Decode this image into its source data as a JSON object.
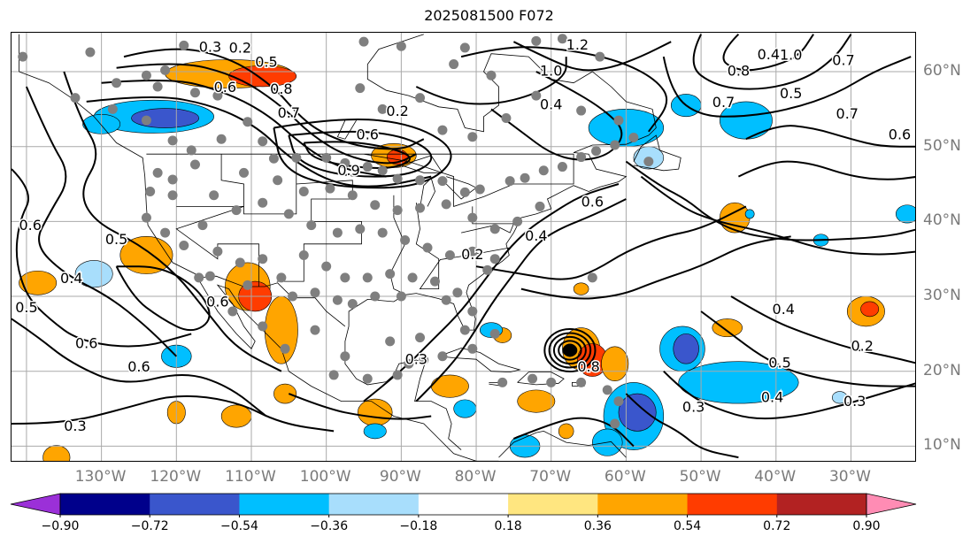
{
  "title": "2025081500 F072",
  "lat_labels": [
    {
      "lat": 60,
      "text": "60°N"
    },
    {
      "lat": 50,
      "text": "50°N"
    },
    {
      "lat": 40,
      "text": "40°N"
    },
    {
      "lat": 30,
      "text": "30°N"
    },
    {
      "lat": 20,
      "text": "20°N"
    },
    {
      "lat": 10,
      "text": "10°N"
    }
  ],
  "lon_labels": [
    {
      "lon": -130,
      "text": "130°W"
    },
    {
      "lon": -120,
      "text": "120°W"
    },
    {
      "lon": -110,
      "text": "110°W"
    },
    {
      "lon": -100,
      "text": "100°W"
    },
    {
      "lon": -90,
      "text": "90°W"
    },
    {
      "lon": -80,
      "text": "80°W"
    },
    {
      "lon": -70,
      "text": "70°W"
    },
    {
      "lon": -60,
      "text": "60°W"
    },
    {
      "lon": -50,
      "text": "50°W"
    },
    {
      "lon": -40,
      "text": "40°W"
    },
    {
      "lon": -30,
      "text": "30°W"
    }
  ],
  "domain": {
    "lon_min": -142.0,
    "lon_max": -21.2,
    "lat_min": 7.8,
    "lat_max": 65.2
  },
  "grid_color": "#a9a9a9",
  "colorbar": {
    "levels": [
      "-0.90",
      "-0.72",
      "-0.54",
      "-0.36",
      "-0.18",
      "0.18",
      "0.36",
      "0.54",
      "0.72",
      "0.90"
    ],
    "colors": [
      "#9b30d8",
      "#00008b",
      "#3a56cc",
      "#00bfff",
      "#a8defc",
      "#ffffff",
      "#ffe680",
      "#ffa500",
      "#ff3c00",
      "#b22222",
      "#ff8cb4"
    ]
  },
  "contour_labels": [
    {
      "text": "0.3",
      "lon": -115.5,
      "lat": 63.2
    },
    {
      "text": "0.2",
      "lon": -111.5,
      "lat": 63.1
    },
    {
      "text": "0.5",
      "lon": -108.0,
      "lat": 61.2
    },
    {
      "text": "0.6",
      "lon": -113.5,
      "lat": 57.8
    },
    {
      "text": "0.8",
      "lon": -106.0,
      "lat": 57.6
    },
    {
      "text": "0.7",
      "lon": -105.0,
      "lat": 54.4
    },
    {
      "text": "0.2",
      "lon": -90.5,
      "lat": 54.6
    },
    {
      "text": "0.6",
      "lon": -94.5,
      "lat": 51.5
    },
    {
      "text": "0.9",
      "lon": -97.0,
      "lat": 46.7
    },
    {
      "text": "0.4",
      "lon": -70.0,
      "lat": 55.5
    },
    {
      "text": "1.2",
      "lon": -66.5,
      "lat": 63.5
    },
    {
      "text": "1.0",
      "lon": -70.0,
      "lat": 60.0
    },
    {
      "text": "0.4",
      "lon": -41.0,
      "lat": 62.2
    },
    {
      "text": "0.8",
      "lon": -45.0,
      "lat": 60.0
    },
    {
      "text": "1.0",
      "lon": -38.0,
      "lat": 62.1
    },
    {
      "text": "0.7",
      "lon": -31.0,
      "lat": 61.4
    },
    {
      "text": "0.5",
      "lon": -38.0,
      "lat": 57.0
    },
    {
      "text": "0.7",
      "lon": -47.0,
      "lat": 55.8
    },
    {
      "text": "0.7",
      "lon": -30.5,
      "lat": 54.3
    },
    {
      "text": "0.6",
      "lon": -23.5,
      "lat": 51.5
    },
    {
      "text": "0.6",
      "lon": -64.5,
      "lat": 42.5
    },
    {
      "text": "0.4",
      "lon": -72.0,
      "lat": 38.0
    },
    {
      "text": "0.2",
      "lon": -80.5,
      "lat": 35.5
    },
    {
      "text": "0.5",
      "lon": -128.0,
      "lat": 37.5
    },
    {
      "text": "0.6",
      "lon": -139.5,
      "lat": 39.4
    },
    {
      "text": "0.4",
      "lon": -134.0,
      "lat": 32.3
    },
    {
      "text": "0.5",
      "lon": -140.0,
      "lat": 28.4
    },
    {
      "text": "0.6",
      "lon": -132.0,
      "lat": 23.6
    },
    {
      "text": "0.6",
      "lon": -125.0,
      "lat": 20.5
    },
    {
      "text": "0.3",
      "lon": -133.5,
      "lat": 12.6
    },
    {
      "text": "0.6",
      "lon": -114.5,
      "lat": 29.2
    },
    {
      "text": "0.3",
      "lon": -88.0,
      "lat": 21.5
    },
    {
      "text": "0.3",
      "lon": -51.0,
      "lat": 15.1
    },
    {
      "text": "0.4",
      "lon": -40.5,
      "lat": 16.4
    },
    {
      "text": "0.3",
      "lon": -29.5,
      "lat": 15.9
    },
    {
      "text": "0.5",
      "lon": -39.5,
      "lat": 21.0
    },
    {
      "text": "0.2",
      "lon": -28.5,
      "lat": 23.3
    },
    {
      "text": "0.4",
      "lon": -39.0,
      "lat": 28.2
    },
    {
      "text": "0.8",
      "lon": -65.0,
      "lat": 20.5
    }
  ],
  "stations": [
    [
      -140.5,
      62.0
    ],
    [
      -131.5,
      62.6
    ],
    [
      -124.0,
      59.5
    ],
    [
      -119.0,
      63.5
    ],
    [
      -121.5,
      60.2
    ],
    [
      -128.0,
      58.5
    ],
    [
      -122.5,
      58.0
    ],
    [
      -117.5,
      57.2
    ],
    [
      -114.5,
      56.8
    ],
    [
      -110.5,
      53.3
    ],
    [
      -108.5,
      50.7
    ],
    [
      -107.0,
      48.4
    ],
    [
      -104.0,
      48.5
    ],
    [
      -100.0,
      48.5
    ],
    [
      -97.5,
      47.8
    ],
    [
      -94.5,
      47.3
    ],
    [
      -92.5,
      46.8
    ],
    [
      -90.5,
      45.7
    ],
    [
      -87.5,
      45.5
    ],
    [
      -84.5,
      45.4
    ],
    [
      -81.5,
      43.9
    ],
    [
      -79.5,
      44.3
    ],
    [
      -75.5,
      45.4
    ],
    [
      -73.5,
      45.8
    ],
    [
      -71.0,
      46.8
    ],
    [
      -68.5,
      47.3
    ],
    [
      -66.0,
      48.6
    ],
    [
      -64.0,
      49.4
    ],
    [
      -61.5,
      50.2
    ],
    [
      -59.0,
      51.2
    ],
    [
      -57.0,
      48.0
    ],
    [
      -61.0,
      53.5
    ],
    [
      -66.0,
      54.8
    ],
    [
      -72.0,
      56.8
    ],
    [
      -78.0,
      59.5
    ],
    [
      -83.0,
      61.0
    ],
    [
      -95.0,
      64.0
    ],
    [
      -90.0,
      63.4
    ],
    [
      -81.5,
      63.2
    ],
    [
      -72.0,
      64.1
    ],
    [
      -68.5,
      64.4
    ],
    [
      -63.5,
      62.0
    ],
    [
      -95.5,
      57.8
    ],
    [
      -92.5,
      55.0
    ],
    [
      -87.5,
      56.5
    ],
    [
      -84.5,
      52.2
    ],
    [
      -80.5,
      51.3
    ],
    [
      -76.0,
      53.8
    ],
    [
      -133.5,
      56.5
    ],
    [
      -128.5,
      55.0
    ],
    [
      -124.0,
      53.5
    ],
    [
      -120.5,
      50.8
    ],
    [
      -118.0,
      49.5
    ],
    [
      -114.0,
      51.0
    ],
    [
      -111.0,
      46.5
    ],
    [
      -106.5,
      45.5
    ],
    [
      -103.0,
      44.0
    ],
    [
      -99.5,
      44.4
    ],
    [
      -96.5,
      43.5
    ],
    [
      -93.5,
      42.2
    ],
    [
      -90.5,
      41.5
    ],
    [
      -87.5,
      41.8
    ],
    [
      -84.0,
      42.3
    ],
    [
      -80.5,
      40.5
    ],
    [
      -77.5,
      39.0
    ],
    [
      -74.5,
      40.0
    ],
    [
      -71.5,
      42.0
    ],
    [
      -122.5,
      46.5
    ],
    [
      -123.5,
      44.0
    ],
    [
      -120.5,
      45.6
    ],
    [
      -117.5,
      47.6
    ],
    [
      -115.0,
      43.5
    ],
    [
      -112.0,
      41.5
    ],
    [
      -108.5,
      42.5
    ],
    [
      -105.0,
      41.0
    ],
    [
      -102.0,
      39.5
    ],
    [
      -98.5,
      38.5
    ],
    [
      -95.5,
      39.0
    ],
    [
      -92.5,
      38.5
    ],
    [
      -89.5,
      37.5
    ],
    [
      -86.5,
      36.5
    ],
    [
      -83.5,
      35.5
    ],
    [
      -80.5,
      36.0
    ],
    [
      -77.5,
      35.0
    ],
    [
      -121.5,
      38.5
    ],
    [
      -119.0,
      36.8
    ],
    [
      -116.5,
      39.5
    ],
    [
      -114.5,
      36.0
    ],
    [
      -111.5,
      34.5
    ],
    [
      -108.5,
      35.0
    ],
    [
      -106.0,
      32.5
    ],
    [
      -103.0,
      35.5
    ],
    [
      -100.0,
      34.0
    ],
    [
      -97.5,
      32.5
    ],
    [
      -94.5,
      32.5
    ],
    [
      -91.5,
      33.0
    ],
    [
      -88.5,
      32.5
    ],
    [
      -85.5,
      32.0
    ],
    [
      -82.5,
      30.5
    ],
    [
      -80.5,
      28.0
    ],
    [
      -81.5,
      25.5
    ],
    [
      -90.0,
      30.0
    ],
    [
      -93.5,
      30.0
    ],
    [
      -96.5,
      29.0
    ],
    [
      -98.5,
      29.5
    ],
    [
      -101.5,
      30.5
    ],
    [
      -104.5,
      30.0
    ],
    [
      -110.5,
      31.5
    ],
    [
      -115.5,
      32.7
    ],
    [
      -117.0,
      32.5
    ],
    [
      -124.0,
      40.5
    ],
    [
      -120.5,
      43.5
    ],
    [
      -112.5,
      28.0
    ],
    [
      -108.5,
      26.0
    ],
    [
      -105.5,
      23.0
    ],
    [
      -101.5,
      25.5
    ],
    [
      -99.0,
      19.5
    ],
    [
      -97.5,
      22.0
    ],
    [
      -94.5,
      19.0
    ],
    [
      -90.5,
      19.5
    ],
    [
      -89.0,
      21.0
    ],
    [
      -87.0,
      21.5
    ],
    [
      -84.5,
      22.0
    ],
    [
      -80.5,
      23.0
    ],
    [
      -77.5,
      25.0
    ],
    [
      -76.5,
      18.5
    ],
    [
      -72.5,
      19.0
    ],
    [
      -70.0,
      18.5
    ],
    [
      -66.0,
      18.5
    ],
    [
      -61.0,
      16.0
    ],
    [
      -61.5,
      13.0
    ],
    [
      -62.5,
      17.5
    ],
    [
      -64.5,
      32.5
    ],
    [
      -78.5,
      33.5
    ],
    [
      -84.0,
      29.5
    ],
    [
      -87.5,
      24.5
    ],
    [
      -91.5,
      24.0
    ]
  ],
  "positive_blobs": [
    {
      "lon": -113.0,
      "lat": 59.7,
      "rx": 8.5,
      "ry": 1.9,
      "level": 7
    },
    {
      "lon": -108.5,
      "lat": 59.4,
      "rx": 4.5,
      "ry": 1.4,
      "level": 8
    },
    {
      "lon": -110.5,
      "lat": 31.3,
      "rx": 3.0,
      "ry": 3.2,
      "level": 7
    },
    {
      "lon": -109.5,
      "lat": 30.0,
      "rx": 2.2,
      "ry": 2.0,
      "level": 8
    },
    {
      "lon": -106.0,
      "lat": 25.5,
      "rx": 2.2,
      "ry": 4.5,
      "level": 7
    },
    {
      "lon": -124.0,
      "lat": 35.5,
      "rx": 3.5,
      "ry": 2.5,
      "level": 7
    },
    {
      "lon": -138.5,
      "lat": 31.8,
      "rx": 2.5,
      "ry": 1.6,
      "level": 7
    },
    {
      "lon": -91.0,
      "lat": 48.8,
      "rx": 3.0,
      "ry": 1.6,
      "level": 7
    },
    {
      "lon": -90.5,
      "lat": 48.6,
      "rx": 1.4,
      "ry": 1.0,
      "level": 8
    },
    {
      "lon": -76.5,
      "lat": 24.8,
      "rx": 1.2,
      "ry": 1.0,
      "level": 7
    },
    {
      "lon": -66.0,
      "lat": 23.0,
      "rx": 2.5,
      "ry": 2.8,
      "level": 7
    },
    {
      "lon": -64.5,
      "lat": 21.5,
      "rx": 2.0,
      "ry": 2.2,
      "level": 8
    },
    {
      "lon": -61.5,
      "lat": 21.0,
      "rx": 1.8,
      "ry": 2.3,
      "level": 7
    },
    {
      "lon": -72.0,
      "lat": 16.0,
      "rx": 2.5,
      "ry": 1.5,
      "level": 7
    },
    {
      "lon": -83.5,
      "lat": 18.0,
      "rx": 2.5,
      "ry": 1.5,
      "level": 7
    },
    {
      "lon": -93.5,
      "lat": 14.5,
      "rx": 2.3,
      "ry": 1.8,
      "level": 7
    },
    {
      "lon": -105.5,
      "lat": 17.0,
      "rx": 1.5,
      "ry": 1.3,
      "level": 7
    },
    {
      "lon": -112.0,
      "lat": 14.0,
      "rx": 2.0,
      "ry": 1.5,
      "level": 7
    },
    {
      "lon": -120.0,
      "lat": 14.5,
      "rx": 1.2,
      "ry": 1.5,
      "level": 7
    },
    {
      "lon": -136.0,
      "lat": 8.5,
      "rx": 1.8,
      "ry": 1.6,
      "level": 7
    },
    {
      "lon": -45.5,
      "lat": 40.5,
      "rx": 2.0,
      "ry": 2.0,
      "level": 7
    },
    {
      "lon": -46.5,
      "lat": 25.8,
      "rx": 2.0,
      "ry": 1.2,
      "level": 7
    },
    {
      "lon": -28.0,
      "lat": 28.0,
      "rx": 2.5,
      "ry": 2.0,
      "level": 7
    },
    {
      "lon": -27.5,
      "lat": 28.3,
      "rx": 1.2,
      "ry": 1.0,
      "level": 8
    },
    {
      "lon": -66.0,
      "lat": 31.0,
      "rx": 1.0,
      "ry": 0.8,
      "level": 7
    },
    {
      "lon": -68.0,
      "lat": 12.0,
      "rx": 1.0,
      "ry": 1.0,
      "level": 7
    }
  ],
  "negative_blobs": [
    {
      "lon": -123.0,
      "lat": 54.0,
      "rx": 8.0,
      "ry": 2.2,
      "level": 3
    },
    {
      "lon": -121.5,
      "lat": 53.8,
      "rx": 4.5,
      "ry": 1.3,
      "level": 2
    },
    {
      "lon": -130.0,
      "lat": 53.0,
      "rx": 2.5,
      "ry": 1.3,
      "level": 3
    },
    {
      "lon": -60.0,
      "lat": 52.5,
      "rx": 5.0,
      "ry": 2.5,
      "level": 3
    },
    {
      "lon": -52.0,
      "lat": 55.5,
      "rx": 2.0,
      "ry": 1.5,
      "level": 3
    },
    {
      "lon": -44.0,
      "lat": 53.5,
      "rx": 3.5,
      "ry": 2.5,
      "level": 3
    },
    {
      "lon": -57.0,
      "lat": 48.5,
      "rx": 2.0,
      "ry": 1.5,
      "level": 4
    },
    {
      "lon": -52.5,
      "lat": 23.0,
      "rx": 3.0,
      "ry": 3.0,
      "level": 3
    },
    {
      "lon": -52.0,
      "lat": 23.0,
      "rx": 1.7,
      "ry": 2.0,
      "level": 2
    },
    {
      "lon": -45.0,
      "lat": 18.5,
      "rx": 8.0,
      "ry": 2.8,
      "level": 3
    },
    {
      "lon": -59.0,
      "lat": 14.0,
      "rx": 4.0,
      "ry": 4.5,
      "level": 3
    },
    {
      "lon": -58.5,
      "lat": 14.5,
      "rx": 2.5,
      "ry": 2.5,
      "level": 2
    },
    {
      "lon": -62.5,
      "lat": 10.5,
      "rx": 2.0,
      "ry": 1.8,
      "level": 3
    },
    {
      "lon": -73.5,
      "lat": 10.0,
      "rx": 2.0,
      "ry": 1.5,
      "level": 3
    },
    {
      "lon": -78.0,
      "lat": 25.5,
      "rx": 1.5,
      "ry": 1.0,
      "level": 3
    },
    {
      "lon": -131.0,
      "lat": 33.0,
      "rx": 2.5,
      "ry": 1.8,
      "level": 4
    },
    {
      "lon": -120.0,
      "lat": 22.0,
      "rx": 2.0,
      "ry": 1.5,
      "level": 3
    },
    {
      "lon": -93.5,
      "lat": 12.0,
      "rx": 1.5,
      "ry": 1.0,
      "level": 3
    },
    {
      "lon": -81.5,
      "lat": 15.0,
      "rx": 1.5,
      "ry": 1.2,
      "level": 3
    },
    {
      "lon": -22.5,
      "lat": 41.0,
      "rx": 1.5,
      "ry": 1.2,
      "level": 3
    },
    {
      "lon": -34.0,
      "lat": 37.5,
      "rx": 1.0,
      "ry": 0.8,
      "level": 3
    },
    {
      "lon": -31.5,
      "lat": 16.5,
      "rx": 1.0,
      "ry": 0.8,
      "level": 4
    },
    {
      "lon": -43.5,
      "lat": 41.0,
      "rx": 0.6,
      "ry": 0.6,
      "level": 3
    }
  ],
  "storm_center": {
    "lon": -67.5,
    "lat": 22.8
  }
}
